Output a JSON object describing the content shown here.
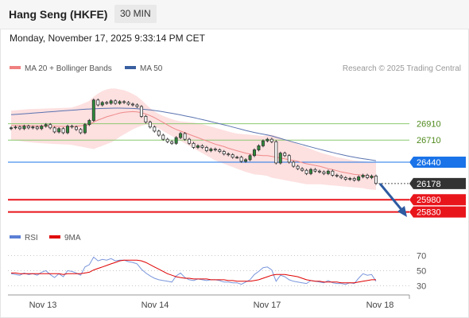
{
  "header": {
    "title": "Hang Seng (HKFE)",
    "interval": "30 MIN"
  },
  "datetime": "Monday, November 17, 2025 9:33:14 PM CET",
  "legend_main": [
    {
      "label": "MA 20 + Bollinger Bands",
      "color": "#f08080"
    },
    {
      "label": "MA 50",
      "color": "#3a5fa0"
    }
  ],
  "credit": "Research © 2025 Trading Central",
  "legend_rsi": [
    {
      "label": "RSI",
      "color": "#5b7fd6"
    },
    {
      "label": "9MA",
      "color": "#e00000"
    }
  ],
  "chart_data": {
    "type": "candlestick",
    "x_labels": [
      "Nov 13",
      "Nov 14",
      "Nov 17",
      "Nov 18"
    ],
    "last_price": 26178,
    "levels": [
      {
        "value": 26910,
        "kind": "resistance",
        "color": "#8cc870"
      },
      {
        "value": 26710,
        "kind": "resistance",
        "color": "#8cc870"
      },
      {
        "value": 26440,
        "kind": "pivot",
        "color": "#1a73e8"
      },
      {
        "value": 26178,
        "kind": "last",
        "color": "#333333"
      },
      {
        "value": 25980,
        "kind": "support",
        "color": "#e8151b"
      },
      {
        "value": 25830,
        "kind": "support",
        "color": "#e8151b"
      }
    ],
    "price_axis": {
      "ymin": 25700,
      "ymax": 27500
    },
    "closes": [
      26860,
      26870,
      26850,
      26880,
      26860,
      26870,
      26850,
      26880,
      26900,
      26860,
      26810,
      26850,
      26800,
      26880,
      26870,
      26840,
      26800,
      26900,
      26950,
      27200,
      27140,
      27170,
      27160,
      27190,
      27160,
      27180,
      27170,
      27150,
      27140,
      27120,
      27000,
      26930,
      26870,
      26820,
      26770,
      26720,
      26690,
      26670,
      26740,
      26790,
      26720,
      26670,
      26620,
      26640,
      26620,
      26580,
      26600,
      26590,
      26570,
      26540,
      26530,
      26500,
      26500,
      26450,
      26470,
      26520,
      26590,
      26640,
      26700,
      26720,
      26690,
      26430,
      26550,
      26520,
      26440,
      26390,
      26360,
      26340,
      26300,
      26350,
      26330,
      26320,
      26300,
      26330,
      26280,
      26270,
      26250,
      26230,
      26240,
      26220,
      26260,
      26280,
      26250,
      26270,
      26180
    ],
    "ma20": [
      26890,
      26889,
      26888,
      26886,
      26885,
      26884,
      26883,
      26882,
      26881,
      26880,
      26879,
      26878,
      26877,
      26876,
      26875,
      26880,
      26885,
      26890,
      26900,
      26930,
      26955,
      26975,
      26995,
      27010,
      27025,
      27040,
      27050,
      27055,
      27058,
      27055,
      27045,
      27030,
      27010,
      26985,
      26955,
      26925,
      26895,
      26865,
      26840,
      26820,
      26800,
      26780,
      26760,
      26740,
      26720,
      26700,
      26680,
      26660,
      26645,
      26630,
      26610,
      26595,
      26580,
      26565,
      26550,
      26540,
      26530,
      26525,
      26520,
      26520,
      26510,
      26500,
      26490,
      26480,
      26470,
      26460,
      26450,
      26435,
      26420,
      26410,
      26400,
      26390,
      26375,
      26360,
      26350,
      26335,
      26320,
      26310,
      26300,
      26290,
      26285,
      26280,
      26270,
      26265,
      26255
    ],
    "bb_upper": [
      27070,
      27075,
      27080,
      27085,
      27088,
      27090,
      27092,
      27094,
      27096,
      27098,
      27100,
      27102,
      27104,
      27106,
      27108,
      27125,
      27145,
      27165,
      27190,
      27240,
      27280,
      27310,
      27330,
      27340,
      27340,
      27330,
      27320,
      27300,
      27275,
      27245,
      27200,
      27150,
      27100,
      27060,
      27030,
      27005,
      26985,
      26965,
      26950,
      26940,
      26935,
      26930,
      26925,
      26915,
      26905,
      26890,
      26875,
      26860,
      26845,
      26830,
      26815,
      26800,
      26790,
      26785,
      26780,
      26775,
      26770,
      26765,
      26760,
      26770,
      26775,
      26760,
      26740,
      26720,
      26700,
      26680,
      26660,
      26640,
      26620,
      26600,
      26580,
      26560,
      26545,
      26530,
      26515,
      26500,
      26490,
      26480,
      26470,
      26460,
      26455,
      26450,
      26445,
      26440,
      26435
    ],
    "bb_lower": [
      26710,
      26705,
      26700,
      26690,
      26685,
      26680,
      26675,
      26672,
      26668,
      26665,
      26662,
      26660,
      26657,
      26655,
      26652,
      26640,
      26630,
      26620,
      26610,
      26600,
      26620,
      26640,
      26660,
      26680,
      26710,
      26750,
      26780,
      26810,
      26840,
      26865,
      26885,
      26900,
      26900,
      26880,
      26850,
      26820,
      26790,
      26760,
      26730,
      26700,
      26670,
      26640,
      26610,
      26580,
      26550,
      26520,
      26490,
      26460,
      26440,
      26420,
      26400,
      26380,
      26360,
      26340,
      26320,
      26305,
      26290,
      26285,
      26280,
      26270,
      26250,
      26240,
      26230,
      26220,
      26210,
      26200,
      26190,
      26180,
      26170,
      26170,
      26170,
      26170,
      26165,
      26160,
      26155,
      26150,
      26145,
      26140,
      26135,
      26130,
      26125,
      26120,
      26110,
      26105,
      26100
    ],
    "ma50": [
      27020,
      27024,
      27028,
      27032,
      27036,
      27040,
      27044,
      27048,
      27052,
      27056,
      27060,
      27064,
      27068,
      27072,
      27076,
      27080,
      27084,
      27087,
      27090,
      27092,
      27095,
      27097,
      27098,
      27100,
      27101,
      27101,
      27100,
      27099,
      27097,
      27094,
      27090,
      27085,
      27079,
      27072,
      27064,
      27056,
      27047,
      27038,
      27028,
      27018,
      27007,
      26996,
      26985,
      26973,
      26961,
      26949,
      26936,
      26923,
      26910,
      26897,
      26884,
      26870,
      26856,
      26842,
      26828,
      26815,
      26803,
      26792,
      26782,
      26772,
      26761,
      26745,
      26730,
      26715,
      26700,
      26685,
      26670,
      26655,
      26640,
      26626,
      26612,
      26598,
      26584,
      26571,
      26558,
      26545,
      26533,
      26521,
      26510,
      26500,
      26491,
      26482,
      26474,
      26466,
      26458
    ],
    "rsi": [
      46,
      45,
      44,
      47,
      45,
      46,
      44,
      48,
      50,
      45,
      41,
      46,
      42,
      50,
      49,
      47,
      44,
      55,
      58,
      68,
      63,
      65,
      64,
      66,
      63,
      64,
      64,
      62,
      61,
      59,
      52,
      47,
      43,
      40,
      38,
      37,
      36,
      35,
      43,
      47,
      41,
      38,
      37,
      39,
      38,
      37,
      38,
      38,
      37,
      35,
      35,
      34,
      34,
      32,
      35,
      38,
      45,
      49,
      54,
      55,
      51,
      36,
      44,
      42,
      38,
      36,
      35,
      34,
      33,
      37,
      36,
      35,
      34,
      37,
      34,
      33,
      33,
      32,
      34,
      33,
      40,
      46,
      44,
      45,
      36
    ],
    "rsi_ma9": [
      47,
      47,
      46,
      46,
      46,
      46,
      46,
      46,
      46,
      46,
      46,
      46,
      45,
      46,
      46,
      46,
      46,
      47,
      48,
      51,
      53,
      55,
      57,
      59,
      61,
      63,
      64,
      64,
      64,
      64,
      63,
      61,
      58,
      55,
      52,
      49,
      46,
      44,
      42,
      41,
      40,
      40,
      39,
      39,
      39,
      39,
      38,
      38,
      38,
      38,
      37,
      37,
      36,
      36,
      36,
      36,
      37,
      38,
      40,
      42,
      44,
      45,
      45,
      45,
      44,
      43,
      42,
      40,
      38,
      37,
      36,
      36,
      35,
      35,
      35,
      35,
      34,
      34,
      34,
      34,
      35,
      36,
      37,
      38,
      38
    ],
    "rsi_axis": {
      "ymin": 20,
      "ymax": 80,
      "ticks": [
        70,
        50,
        30
      ]
    }
  }
}
